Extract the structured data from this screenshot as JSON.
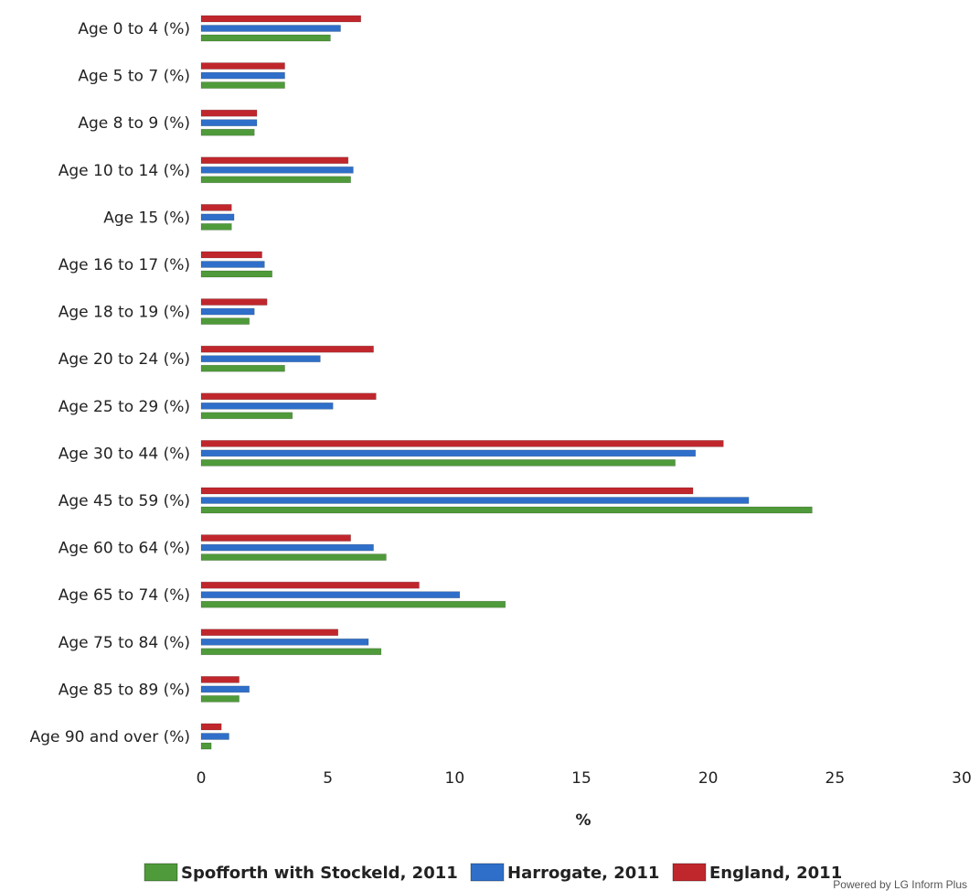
{
  "chart_data": {
    "type": "bar",
    "orientation": "horizontal",
    "categories": [
      "Age 0 to 4 (%)",
      "Age 5 to 7 (%)",
      "Age 8 to 9 (%)",
      "Age 10 to 14 (%)",
      "Age 15 (%)",
      "Age 16 to 17 (%)",
      "Age 18 to 19 (%)",
      "Age 20 to 24 (%)",
      "Age 25 to 29 (%)",
      "Age 30 to 44 (%)",
      "Age 45 to 59 (%)",
      "Age 60 to 64 (%)",
      "Age 65 to 74 (%)",
      "Age 75 to 84 (%)",
      "Age 85 to 89 (%)",
      "Age 90 and over (%)"
    ],
    "series": [
      {
        "name": "England, 2011",
        "color": "#c0272d",
        "values": [
          6.3,
          3.3,
          2.2,
          5.8,
          1.2,
          2.4,
          2.6,
          6.8,
          6.9,
          20.6,
          19.4,
          5.9,
          8.6,
          5.4,
          1.5,
          0.8
        ]
      },
      {
        "name": "Harrogate, 2011",
        "color": "#2f6fca",
        "values": [
          5.5,
          3.3,
          2.2,
          6.0,
          1.3,
          2.5,
          2.1,
          4.7,
          5.2,
          19.5,
          21.6,
          6.8,
          10.2,
          6.6,
          1.9,
          1.1
        ]
      },
      {
        "name": "Spofforth with Stockeld, 2011",
        "color": "#4f9a3a",
        "values": [
          5.1,
          3.3,
          2.1,
          5.9,
          1.2,
          2.8,
          1.9,
          3.3,
          3.6,
          18.7,
          24.1,
          7.3,
          12.0,
          7.1,
          1.5,
          0.4
        ]
      }
    ],
    "xlabel": "%",
    "xlim": [
      0,
      30
    ],
    "xticks": [
      0,
      5,
      10,
      15,
      20,
      25,
      30
    ],
    "legend_position": "bottom",
    "legend_order": [
      "Spofforth with Stockeld, 2011",
      "Harrogate, 2011",
      "England, 2011"
    ],
    "grid": false
  },
  "credit": "Powered by LG Inform Plus"
}
